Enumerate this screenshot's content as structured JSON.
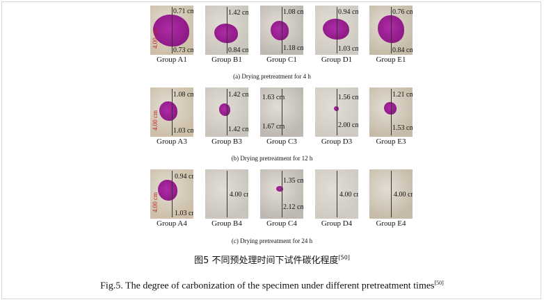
{
  "figure": {
    "rows": [
      {
        "caption": "(a)  Drying pretreatment for 4 h",
        "panels": [
          {
            "label": "Group A1",
            "side": "4.00 cm",
            "annotations": [
              "0.71 cm",
              "0.73 cm"
            ]
          },
          {
            "label": "Group B1",
            "annotations": [
              "1.42 cm",
              "0.84 cm"
            ]
          },
          {
            "label": "Group C1",
            "annotations": [
              "1.08 cm",
              "1.18 cm"
            ]
          },
          {
            "label": "Group D1",
            "annotations": [
              "0.94 cm",
              "1.03 cm"
            ]
          },
          {
            "label": "Group E1",
            "annotations": [
              "0.76 cm",
              "0.84 cm"
            ]
          }
        ]
      },
      {
        "caption": "(b)  Drying pretreatment for 12 h",
        "panels": [
          {
            "label": "Group A3",
            "side": "4.00 cm",
            "annotations": [
              "1.08 cm",
              "1.03 cm"
            ]
          },
          {
            "label": "Group B3",
            "annotations": [
              "1.42 cm",
              "1.42 cm"
            ]
          },
          {
            "label": "Group C3",
            "annotations": [
              "1.63 cm",
              "1.67 cm"
            ]
          },
          {
            "label": "Group D3",
            "annotations": [
              "1.56 cm",
              "2.00 cm"
            ]
          },
          {
            "label": "Group E3",
            "annotations": [
              "1.21 cm",
              "1.53 cm"
            ]
          }
        ]
      },
      {
        "caption": "(c)  Drying pretreatment for 24 h",
        "panels": [
          {
            "label": "Group A4",
            "side": "4.00 cm",
            "annotations": [
              "0.94 cm",
              "1.03 cm"
            ]
          },
          {
            "label": "Group B4",
            "annotations": [
              "4.00 cm"
            ]
          },
          {
            "label": "Group C4",
            "annotations": [
              "1.35 cm",
              "2.12 cm"
            ]
          },
          {
            "label": "Group D4",
            "annotations": [
              "4.00 cm"
            ]
          },
          {
            "label": "Group E4",
            "annotations": [
              "4.00 cm"
            ]
          }
        ]
      }
    ],
    "caption_cn": "图5  不同预处理时间下试件碳化程度",
    "caption_en": "Fig.5. The degree of carbonization of the specimen under different pretreatment times",
    "reference": "[50]"
  }
}
